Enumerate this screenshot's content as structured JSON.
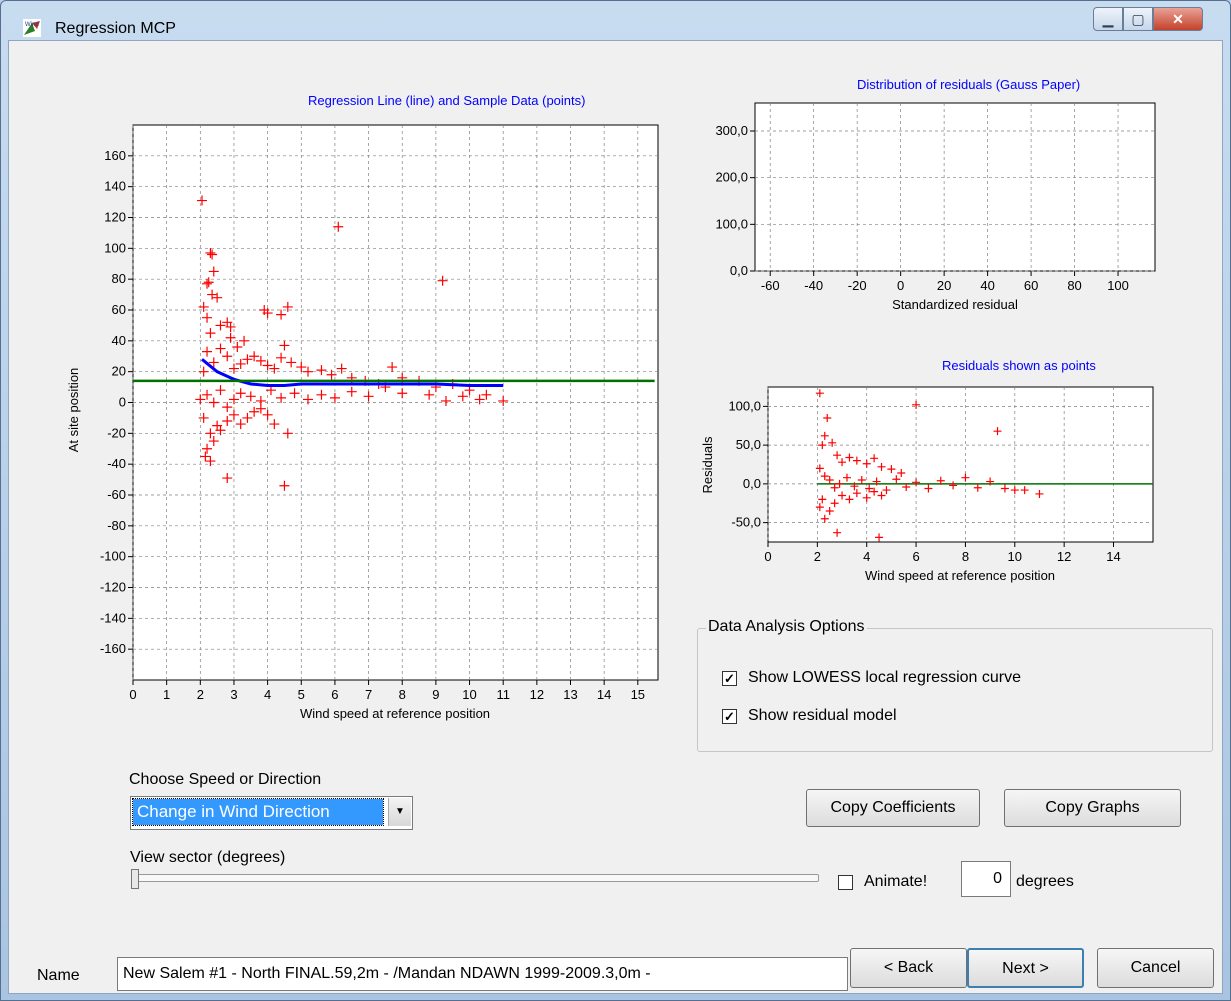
{
  "window": {
    "title": "Regression MCP",
    "min_icon": "minimize-icon",
    "max_icon": "maximize-icon",
    "close_icon": "close-icon",
    "min_glyph": "▁",
    "max_glyph": "▢",
    "close_glyph": "✕"
  },
  "colors": {
    "point": "#ff0000",
    "lowess": "#0000ff",
    "regression": "#007000",
    "title": "#0000ff",
    "grid": "#808080"
  },
  "main_chart": {
    "title": "Regression Line (line) and Sample Data (points)",
    "xlabel": "Wind speed at reference position",
    "ylabel": "At site position",
    "x_ticks": [
      "0",
      "1",
      "2",
      "3",
      "4",
      "5",
      "6",
      "7",
      "8",
      "9",
      "10",
      "11",
      "12",
      "13",
      "14",
      "15"
    ],
    "y_ticks": [
      "160",
      "140",
      "120",
      "100",
      "80",
      "60",
      "40",
      "20",
      "0",
      "-20",
      "-40",
      "-60",
      "-80",
      "-100",
      "-120",
      "-140",
      "-160"
    ]
  },
  "gauss_chart": {
    "title": "Distribution of residuals (Gauss Paper)",
    "xlabel": "Standardized residual",
    "x_ticks": [
      "-60",
      "-40",
      "-20",
      "0",
      "20",
      "40",
      "60",
      "80",
      "100"
    ],
    "y_ticks": [
      "300,0",
      "200,0",
      "100,0",
      "0,0"
    ]
  },
  "resid_chart": {
    "title": "Residuals shown as points",
    "xlabel": "Wind speed at reference position",
    "ylabel": "Residuals",
    "x_ticks": [
      "0",
      "2",
      "4",
      "6",
      "8",
      "10",
      "12",
      "14"
    ],
    "y_ticks": [
      "100,0",
      "50,0",
      "0,0",
      "-50,0"
    ]
  },
  "chart_data": [
    {
      "type": "scatter",
      "title": "Regression Line (line) and Sample Data (points)",
      "xlabel": "Wind speed at reference position",
      "ylabel": "At site position",
      "xlim": [
        0,
        15.6
      ],
      "ylim": [
        -180,
        180
      ],
      "series": [
        {
          "values": [
            [
              2.05,
              131
            ],
            [
              2.1,
              62
            ],
            [
              2.2,
              77
            ],
            [
              2.25,
              78
            ],
            [
              2.3,
              97
            ],
            [
              2.35,
              96
            ],
            [
              2.4,
              85
            ],
            [
              2.35,
              70
            ],
            [
              2.5,
              68
            ],
            [
              2.2,
              55
            ],
            [
              2.3,
              45
            ],
            [
              2.6,
              50
            ],
            [
              2.8,
              52
            ],
            [
              2.9,
              49
            ],
            [
              3.1,
              36
            ],
            [
              2.9,
              42
            ],
            [
              3.3,
              40
            ],
            [
              3.9,
              60
            ],
            [
              4.0,
              58
            ],
            [
              4.4,
              57
            ],
            [
              4.6,
              62
            ],
            [
              4.5,
              37
            ],
            [
              6.1,
              114
            ],
            [
              9.2,
              79
            ],
            [
              2.1,
              20
            ],
            [
              2.2,
              33
            ],
            [
              2.4,
              26
            ],
            [
              2.6,
              35
            ],
            [
              2.8,
              30
            ],
            [
              3.0,
              22
            ],
            [
              3.2,
              25
            ],
            [
              3.4,
              28
            ],
            [
              3.6,
              30
            ],
            [
              3.8,
              27
            ],
            [
              4.0,
              24
            ],
            [
              4.2,
              22
            ],
            [
              4.4,
              29
            ],
            [
              4.7,
              26
            ],
            [
              5.0,
              23
            ],
            [
              5.2,
              20
            ],
            [
              5.6,
              21
            ],
            [
              5.9,
              18
            ],
            [
              6.2,
              22
            ],
            [
              6.5,
              16
            ],
            [
              6.9,
              14
            ],
            [
              7.3,
              12
            ],
            [
              7.7,
              23
            ],
            [
              8.0,
              16
            ],
            [
              8.5,
              14
            ],
            [
              9.0,
              10
            ],
            [
              9.5,
              12
            ],
            [
              10.0,
              8
            ],
            [
              10.5,
              5
            ],
            [
              11.0,
              1
            ],
            [
              2.0,
              2
            ],
            [
              2.2,
              5
            ],
            [
              2.4,
              0
            ],
            [
              2.6,
              8
            ],
            [
              2.8,
              -3
            ],
            [
              3.0,
              2
            ],
            [
              3.2,
              6
            ],
            [
              3.5,
              4
            ],
            [
              3.8,
              1
            ],
            [
              4.1,
              8
            ],
            [
              4.4,
              3
            ],
            [
              4.8,
              6
            ],
            [
              5.2,
              2
            ],
            [
              5.6,
              5
            ],
            [
              6.0,
              3
            ],
            [
              6.5,
              7
            ],
            [
              7.0,
              4
            ],
            [
              7.5,
              10
            ],
            [
              8.0,
              6
            ],
            [
              8.8,
              5
            ],
            [
              9.3,
              1
            ],
            [
              9.8,
              4
            ],
            [
              10.3,
              2
            ],
            [
              2.1,
              -10
            ],
            [
              2.3,
              -20
            ],
            [
              2.2,
              -30
            ],
            [
              2.4,
              -25
            ],
            [
              2.5,
              -15
            ],
            [
              2.6,
              -18
            ],
            [
              2.8,
              -12
            ],
            [
              3.0,
              -8
            ],
            [
              3.2,
              -14
            ],
            [
              3.4,
              -10
            ],
            [
              3.6,
              -6
            ],
            [
              3.8,
              -4
            ],
            [
              4.0,
              -8
            ],
            [
              4.2,
              -14
            ],
            [
              4.6,
              -20
            ],
            [
              2.15,
              -35
            ],
            [
              2.3,
              -38
            ],
            [
              2.8,
              -49
            ],
            [
              4.5,
              -54
            ]
          ]
        },
        {
          "name": "LOWESS",
          "values": [
            [
              2.05,
              28
            ],
            [
              2.5,
              20
            ],
            [
              3.0,
              15
            ],
            [
              3.5,
              12
            ],
            [
              4.0,
              11
            ],
            [
              4.5,
              11
            ],
            [
              5.0,
              12
            ],
            [
              6.0,
              12
            ],
            [
              7.0,
              12
            ],
            [
              8.0,
              12
            ],
            [
              9.0,
              12
            ],
            [
              10.0,
              11
            ],
            [
              11.0,
              11
            ]
          ]
        },
        {
          "name": "Regression",
          "values": [
            [
              2.0,
              14
            ],
            [
              15.5,
              14
            ]
          ]
        }
      ]
    },
    {
      "type": "line",
      "title": "Distribution of residuals (Gauss Paper)",
      "xlabel": "Standardized residual",
      "xlim": [
        -67,
        117
      ],
      "ylim": [
        0,
        360
      ],
      "series": []
    },
    {
      "type": "scatter",
      "title": "Residuals shown as points",
      "xlabel": "Wind speed at reference position",
      "ylabel": "Residuals",
      "xlim": [
        0,
        15.6
      ],
      "ylim": [
        -75,
        125
      ],
      "series": [
        {
          "values": [
            [
              2.1,
              117
            ],
            [
              2.2,
              50
            ],
            [
              2.3,
              62
            ],
            [
              2.4,
              85
            ],
            [
              2.6,
              53
            ],
            [
              2.8,
              37
            ],
            [
              3.0,
              28
            ],
            [
              3.3,
              34
            ],
            [
              3.6,
              30
            ],
            [
              4.0,
              26
            ],
            [
              4.3,
              33
            ],
            [
              4.6,
              22
            ],
            [
              5.0,
              19
            ],
            [
              5.4,
              14
            ],
            [
              6.0,
              102
            ],
            [
              9.3,
              68
            ],
            [
              2.1,
              20
            ],
            [
              2.3,
              10
            ],
            [
              2.5,
              5
            ],
            [
              2.7,
              -5
            ],
            [
              2.9,
              0
            ],
            [
              3.2,
              8
            ],
            [
              3.5,
              -3
            ],
            [
              3.8,
              5
            ],
            [
              4.1,
              -6
            ],
            [
              4.4,
              3
            ],
            [
              4.8,
              -8
            ],
            [
              5.2,
              6
            ],
            [
              5.6,
              -4
            ],
            [
              6.0,
              2
            ],
            [
              6.5,
              -6
            ],
            [
              7.0,
              4
            ],
            [
              7.5,
              -2
            ],
            [
              8.0,
              8
            ],
            [
              8.5,
              -5
            ],
            [
              9.0,
              3
            ],
            [
              9.6,
              -6
            ],
            [
              10.0,
              -8
            ],
            [
              10.4,
              -8
            ],
            [
              11.0,
              -13
            ],
            [
              2.1,
              -30
            ],
            [
              2.3,
              -45
            ],
            [
              2.2,
              -20
            ],
            [
              2.5,
              -35
            ],
            [
              2.7,
              -25
            ],
            [
              3.0,
              -15
            ],
            [
              3.3,
              -20
            ],
            [
              3.6,
              -12
            ],
            [
              4.0,
              -18
            ],
            [
              4.3,
              -10
            ],
            [
              4.6,
              -15
            ],
            [
              2.8,
              -63
            ],
            [
              4.5,
              -69
            ]
          ]
        }
      ]
    }
  ],
  "options": {
    "group_title": "Data Analysis Options",
    "lowess_label": "Show LOWESS local regression curve",
    "lowess_checked": true,
    "residual_label": "Show residual model",
    "residual_checked": true,
    "check_mark": "✓"
  },
  "controls": {
    "choose_label": "Choose Speed or Direction",
    "choose_value": "Change in Wind Direction",
    "dropdown_arrow": "▼",
    "copy_coefficients": "Copy Coefficients",
    "copy_graphs": "Copy Graphs",
    "view_sector_label": "View sector (degrees)",
    "view_sector_value": 0,
    "animate_label": "Animate!",
    "animate_checked": false,
    "degrees_value": "0",
    "degrees_label": "degrees"
  },
  "footer": {
    "name_label": "Name",
    "name_value": "New Salem #1 - North FINAL.59,2m - /Mandan NDAWN 1999-2009.3,0m -",
    "back": "< Back",
    "back_key": "B",
    "next": "Next >",
    "next_key": "N",
    "cancel": "Cancel"
  }
}
